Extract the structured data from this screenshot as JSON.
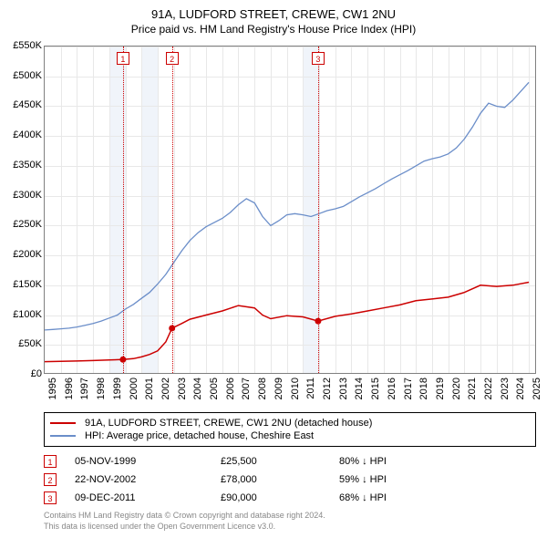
{
  "title": "91A, LUDFORD STREET, CREWE, CW1 2NU",
  "subtitle": "Price paid vs. HM Land Registry's House Price Index (HPI)",
  "chart": {
    "type": "line",
    "x_min": 1995,
    "x_max": 2025.5,
    "y_min": 0,
    "y_max": 550000,
    "y_tick_step": 50000,
    "y_tick_labels": [
      "£0",
      "£50K",
      "£100K",
      "£150K",
      "£200K",
      "£250K",
      "£300K",
      "£350K",
      "£400K",
      "£450K",
      "£500K",
      "£550K"
    ],
    "x_ticks": [
      1995,
      1996,
      1997,
      1998,
      1999,
      2000,
      2001,
      2002,
      2003,
      2004,
      2005,
      2006,
      2007,
      2008,
      2009,
      2010,
      2011,
      2012,
      2013,
      2014,
      2015,
      2016,
      2017,
      2018,
      2019,
      2020,
      2021,
      2022,
      2023,
      2024,
      2025
    ],
    "shade_bands": [
      [
        1999,
        2000
      ],
      [
        2001,
        2002
      ],
      [
        2011,
        2012
      ]
    ],
    "shade_color": "#f0f4fa",
    "grid_color": "#e8e8e8",
    "border_color": "#808080",
    "series": [
      {
        "name": "hpi",
        "color": "#6b8ec9",
        "width": 1.3,
        "points": [
          [
            1995,
            75000
          ],
          [
            1995.5,
            76000
          ],
          [
            1996,
            77000
          ],
          [
            1996.5,
            78000
          ],
          [
            1997,
            80000
          ],
          [
            1997.5,
            83000
          ],
          [
            1998,
            86000
          ],
          [
            1998.5,
            90000
          ],
          [
            1999,
            95000
          ],
          [
            1999.5,
            100000
          ],
          [
            2000,
            110000
          ],
          [
            2000.5,
            118000
          ],
          [
            2001,
            128000
          ],
          [
            2001.5,
            138000
          ],
          [
            2002,
            152000
          ],
          [
            2002.5,
            168000
          ],
          [
            2003,
            188000
          ],
          [
            2003.5,
            208000
          ],
          [
            2004,
            225000
          ],
          [
            2004.5,
            238000
          ],
          [
            2005,
            248000
          ],
          [
            2005.5,
            255000
          ],
          [
            2006,
            262000
          ],
          [
            2006.5,
            272000
          ],
          [
            2007,
            285000
          ],
          [
            2007.5,
            295000
          ],
          [
            2008,
            288000
          ],
          [
            2008.5,
            265000
          ],
          [
            2009,
            250000
          ],
          [
            2009.5,
            258000
          ],
          [
            2010,
            268000
          ],
          [
            2010.5,
            270000
          ],
          [
            2011,
            268000
          ],
          [
            2011.5,
            265000
          ],
          [
            2012,
            270000
          ],
          [
            2012.5,
            275000
          ],
          [
            2013,
            278000
          ],
          [
            2013.5,
            282000
          ],
          [
            2014,
            290000
          ],
          [
            2014.5,
            298000
          ],
          [
            2015,
            305000
          ],
          [
            2015.5,
            312000
          ],
          [
            2016,
            320000
          ],
          [
            2016.5,
            328000
          ],
          [
            2017,
            335000
          ],
          [
            2017.5,
            342000
          ],
          [
            2018,
            350000
          ],
          [
            2018.5,
            358000
          ],
          [
            2019,
            362000
          ],
          [
            2019.5,
            365000
          ],
          [
            2020,
            370000
          ],
          [
            2020.5,
            380000
          ],
          [
            2021,
            395000
          ],
          [
            2021.5,
            415000
          ],
          [
            2022,
            438000
          ],
          [
            2022.5,
            455000
          ],
          [
            2023,
            450000
          ],
          [
            2023.5,
            448000
          ],
          [
            2024,
            460000
          ],
          [
            2024.5,
            475000
          ],
          [
            2025,
            490000
          ]
        ]
      },
      {
        "name": "property",
        "color": "#cc0000",
        "width": 1.5,
        "points": [
          [
            1995,
            22000
          ],
          [
            1996,
            22500
          ],
          [
            1997,
            23000
          ],
          [
            1998,
            23800
          ],
          [
            1999,
            24800
          ],
          [
            1999.85,
            25500
          ],
          [
            1999.85,
            25500
          ],
          [
            2000.5,
            27000
          ],
          [
            2001,
            30000
          ],
          [
            2001.5,
            34000
          ],
          [
            2002,
            40000
          ],
          [
            2002.5,
            55000
          ],
          [
            2002.89,
            78000
          ],
          [
            2002.89,
            78000
          ],
          [
            2003.5,
            86000
          ],
          [
            2004,
            93000
          ],
          [
            2005,
            100000
          ],
          [
            2006,
            107000
          ],
          [
            2007,
            116000
          ],
          [
            2008,
            112000
          ],
          [
            2008.5,
            100000
          ],
          [
            2009,
            94000
          ],
          [
            2010,
            99000
          ],
          [
            2011,
            97000
          ],
          [
            2011.94,
            90000
          ],
          [
            2011.94,
            90000
          ],
          [
            2013,
            98000
          ],
          [
            2014,
            102000
          ],
          [
            2015,
            107000
          ],
          [
            2016,
            112000
          ],
          [
            2017,
            117000
          ],
          [
            2018,
            124000
          ],
          [
            2019,
            127000
          ],
          [
            2020,
            130000
          ],
          [
            2021,
            138000
          ],
          [
            2022,
            150000
          ],
          [
            2023,
            148000
          ],
          [
            2024,
            150000
          ],
          [
            2025,
            155000
          ]
        ]
      }
    ],
    "sale_markers": [
      {
        "n": 1,
        "x": 1999.85,
        "y": 25500,
        "color": "#cc0000"
      },
      {
        "n": 2,
        "x": 2002.89,
        "y": 78000,
        "color": "#cc0000"
      },
      {
        "n": 3,
        "x": 2011.94,
        "y": 90000,
        "color": "#cc0000"
      }
    ]
  },
  "legend": [
    {
      "color": "#cc0000",
      "label": "91A, LUDFORD STREET, CREWE, CW1 2NU (detached house)"
    },
    {
      "color": "#6b8ec9",
      "label": "HPI: Average price, detached house, Cheshire East"
    }
  ],
  "sales": [
    {
      "n": "1",
      "date": "05-NOV-1999",
      "price": "£25,500",
      "pct": "80% ↓ HPI",
      "color": "#cc0000"
    },
    {
      "n": "2",
      "date": "22-NOV-2002",
      "price": "£78,000",
      "pct": "59% ↓ HPI",
      "color": "#cc0000"
    },
    {
      "n": "3",
      "date": "09-DEC-2011",
      "price": "£90,000",
      "pct": "68% ↓ HPI",
      "color": "#cc0000"
    }
  ],
  "footer_line1": "Contains HM Land Registry data © Crown copyright and database right 2024.",
  "footer_line2": "This data is licensed under the Open Government Licence v3.0."
}
